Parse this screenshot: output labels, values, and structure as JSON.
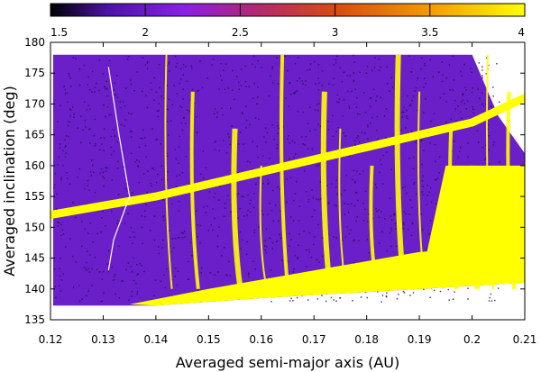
{
  "chart_data": {
    "type": "heatmap",
    "title": "",
    "xlabel": "Averaged semi-major axis (AU)",
    "ylabel": "Averaged inclination (deg)",
    "xlim": [
      0.12,
      0.21
    ],
    "ylim": [
      135,
      180
    ],
    "x_ticks": [
      "0.12",
      "0.13",
      "0.14",
      "0.15",
      "0.16",
      "0.17",
      "0.18",
      "0.19",
      "0.2",
      "0.21"
    ],
    "y_ticks": [
      "135",
      "140",
      "145",
      "150",
      "155",
      "160",
      "165",
      "170",
      "175",
      "180"
    ],
    "colorbar": {
      "range": [
        1.5,
        4
      ],
      "ticks": [
        "1.5",
        "2",
        "2.5",
        "3",
        "3.5",
        "4"
      ],
      "stops": [
        {
          "value": 1.5,
          "color": "#000000"
        },
        {
          "value": 1.8,
          "color": "#4b12a8"
        },
        {
          "value": 2.2,
          "color": "#8a1ee8"
        },
        {
          "value": 2.6,
          "color": "#b4286e"
        },
        {
          "value": 3.0,
          "color": "#d84a10"
        },
        {
          "value": 3.5,
          "color": "#f59a00"
        },
        {
          "value": 4.0,
          "color": "#ffff00"
        }
      ]
    },
    "colors": {
      "background_region": "#6a1fc8",
      "high_region": "#ffff00",
      "dark_speckle": "#2a0a55"
    },
    "region": {
      "x_min": 0.1205,
      "x_max_curve": [
        [
          0.2,
          178
        ],
        [
          0.205,
          168
        ],
        [
          0.21,
          162
        ],
        [
          0.21,
          155
        ]
      ],
      "bottom_edge": [
        [
          0.12,
          137.3
        ],
        [
          0.14,
          137.3
        ],
        [
          0.16,
          138.5
        ],
        [
          0.18,
          139.5
        ],
        [
          0.2,
          140.5
        ],
        [
          0.21,
          141
        ]
      ],
      "top": 178
    },
    "features": {
      "diagonal_band": [
        [
          0.12,
          152
        ],
        [
          0.14,
          155
        ],
        [
          0.16,
          159
        ],
        [
          0.18,
          163
        ],
        [
          0.2,
          167
        ],
        [
          0.21,
          171
        ]
      ],
      "vertical_streaks_x": [
        0.142,
        0.147,
        0.155,
        0.16,
        0.164,
        0.172,
        0.175,
        0.181,
        0.186,
        0.19,
        0.196,
        0.2,
        0.203,
        0.207
      ],
      "lower_bright_region": [
        [
          0.135,
          137.5
        ],
        [
          0.15,
          140
        ],
        [
          0.17,
          143
        ],
        [
          0.19,
          146
        ],
        [
          0.21,
          147
        ]
      ],
      "white_thin_curve": [
        [
          0.131,
          176
        ],
        [
          0.133,
          165
        ],
        [
          0.135,
          155
        ],
        [
          0.132,
          148
        ],
        [
          0.131,
          143
        ]
      ]
    }
  }
}
